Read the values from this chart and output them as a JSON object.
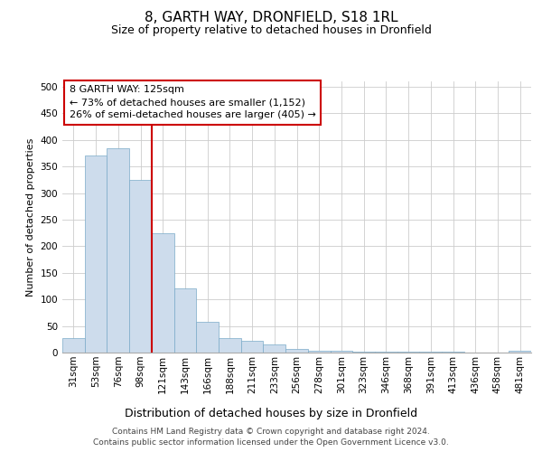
{
  "title1": "8, GARTH WAY, DRONFIELD, S18 1RL",
  "title2": "Size of property relative to detached houses in Dronfield",
  "xlabel": "Distribution of detached houses by size in Dronfield",
  "ylabel": "Number of detached properties",
  "footer1": "Contains HM Land Registry data © Crown copyright and database right 2024.",
  "footer2": "Contains public sector information licensed under the Open Government Licence v3.0.",
  "categories": [
    "31sqm",
    "53sqm",
    "76sqm",
    "98sqm",
    "121sqm",
    "143sqm",
    "166sqm",
    "188sqm",
    "211sqm",
    "233sqm",
    "256sqm",
    "278sqm",
    "301sqm",
    "323sqm",
    "346sqm",
    "368sqm",
    "391sqm",
    "413sqm",
    "436sqm",
    "458sqm",
    "481sqm"
  ],
  "values": [
    27,
    370,
    385,
    325,
    225,
    120,
    57,
    27,
    22,
    15,
    7,
    4,
    3,
    2,
    1,
    1,
    1,
    1,
    0,
    0,
    3
  ],
  "bar_color": "#cddcec",
  "bar_edge_color": "#7aaac8",
  "vline_x": 4,
  "vline_color": "#cc0000",
  "annotation_title": "8 GARTH WAY: 125sqm",
  "annotation_line1": "← 73% of detached houses are smaller (1,152)",
  "annotation_line2": "26% of semi-detached houses are larger (405) →",
  "annotation_box_color": "white",
  "annotation_box_edge": "#cc0000",
  "ylim": [
    0,
    510
  ],
  "yticks": [
    0,
    50,
    100,
    150,
    200,
    250,
    300,
    350,
    400,
    450,
    500
  ],
  "title1_fontsize": 11,
  "title2_fontsize": 9,
  "ylabel_fontsize": 8,
  "xlabel_fontsize": 9,
  "tick_fontsize": 7.5,
  "annot_fontsize": 8,
  "footer_fontsize": 6.5
}
